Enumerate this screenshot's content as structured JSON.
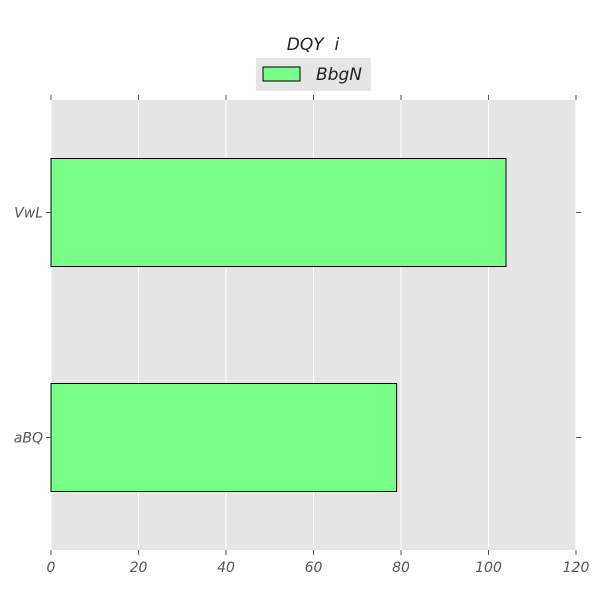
{
  "chart_data": {
    "type": "bar",
    "orientation": "horizontal",
    "title": "DQY  i",
    "xlabel": "",
    "ylabel": "",
    "categories": [
      "VwL",
      "aBQ"
    ],
    "series": [
      {
        "name": "BbgN",
        "values": [
          104,
          79
        ],
        "color": "#77ff88"
      }
    ],
    "xlim": [
      0,
      120
    ],
    "xticks": [
      0,
      20,
      40,
      60,
      80,
      100,
      120
    ],
    "grid": true,
    "legend_position": "top-center",
    "background_color": "#e5e5e5",
    "bar_edge_color": "#000000"
  }
}
